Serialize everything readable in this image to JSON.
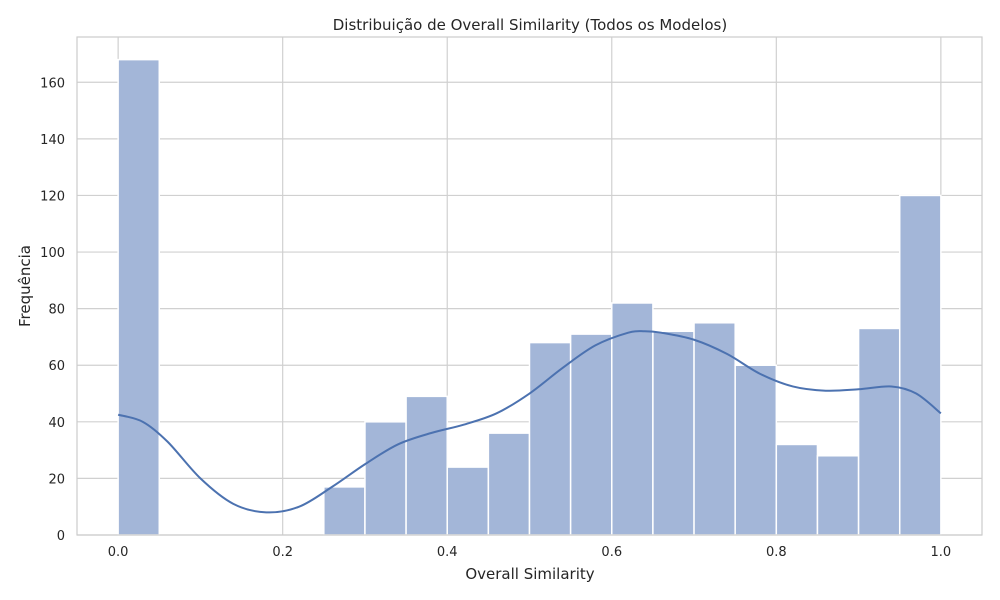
{
  "chart_data": {
    "type": "bar",
    "title": "Distribuição de Overall Similarity (Todos os Modelos)",
    "xlabel": "Overall Similarity",
    "ylabel": "Frequência",
    "xlim": [
      -0.05,
      1.05
    ],
    "ylim": [
      0,
      176
    ],
    "xticks": [
      "0.0",
      "0.2",
      "0.4",
      "0.6",
      "0.8",
      "1.0"
    ],
    "xtick_values": [
      0.0,
      0.2,
      0.4,
      0.6,
      0.8,
      1.0
    ],
    "yticks": [
      "0",
      "20",
      "40",
      "60",
      "80",
      "100",
      "120",
      "140",
      "160"
    ],
    "ytick_values": [
      0,
      20,
      40,
      60,
      80,
      100,
      120,
      140,
      160
    ],
    "bin_edges": [
      0.0,
      0.05,
      0.1,
      0.15,
      0.2,
      0.25,
      0.3,
      0.35,
      0.4,
      0.45,
      0.5,
      0.55,
      0.6,
      0.65,
      0.7,
      0.75,
      0.8,
      0.85,
      0.9,
      0.95,
      1.0
    ],
    "values": [
      168,
      0,
      0,
      0,
      0,
      17,
      40,
      49,
      24,
      36,
      68,
      71,
      82,
      72,
      75,
      60,
      32,
      28,
      73,
      120
    ],
    "kde": {
      "x": [
        0.0,
        0.03,
        0.06,
        0.1,
        0.14,
        0.18,
        0.22,
        0.26,
        0.3,
        0.34,
        0.38,
        0.42,
        0.46,
        0.5,
        0.54,
        0.58,
        0.62,
        0.64,
        0.66,
        0.7,
        0.74,
        0.78,
        0.82,
        0.86,
        0.9,
        0.94,
        0.97,
        1.0
      ],
      "y": [
        42.5,
        40,
        33,
        20,
        11,
        8,
        10,
        17,
        25,
        32,
        36,
        39,
        43,
        50,
        59,
        67,
        71.5,
        72,
        71.5,
        69,
        64,
        57,
        52.5,
        51,
        51.5,
        52.5,
        50,
        43
      ]
    },
    "grid": true,
    "colors": {
      "bar_fill": "#a3b6d8",
      "bar_edge": "#ffffff",
      "kde_line": "#4c72b0",
      "grid": "#d0d0d0",
      "frame": "#cccccc"
    }
  }
}
